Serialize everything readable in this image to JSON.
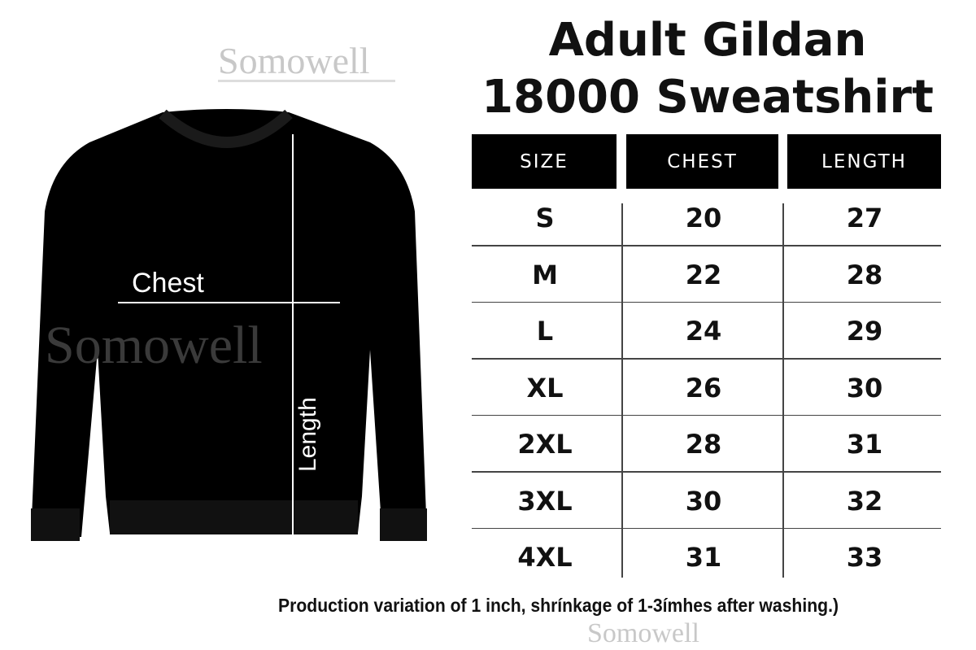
{
  "watermark": "Somowell",
  "title": {
    "line1": "Adult Gildan",
    "line2": "18000 Sweatshirt"
  },
  "diagram": {
    "chest_label": "Chest",
    "length_label": "Length"
  },
  "table": {
    "headers": [
      "SIZE",
      "CHEST",
      "LENGTH"
    ],
    "rows": [
      [
        "S",
        "20",
        "27"
      ],
      [
        "M",
        "22",
        "28"
      ],
      [
        "L",
        "24",
        "29"
      ],
      [
        "XL",
        "26",
        "30"
      ],
      [
        "2XL",
        "28",
        "31"
      ],
      [
        "3XL",
        "30",
        "32"
      ],
      [
        "4XL",
        "31",
        "33"
      ]
    ]
  },
  "footnote": "Production variation of 1 inch, shrínkage of 1-3ímhes after washing.)"
}
